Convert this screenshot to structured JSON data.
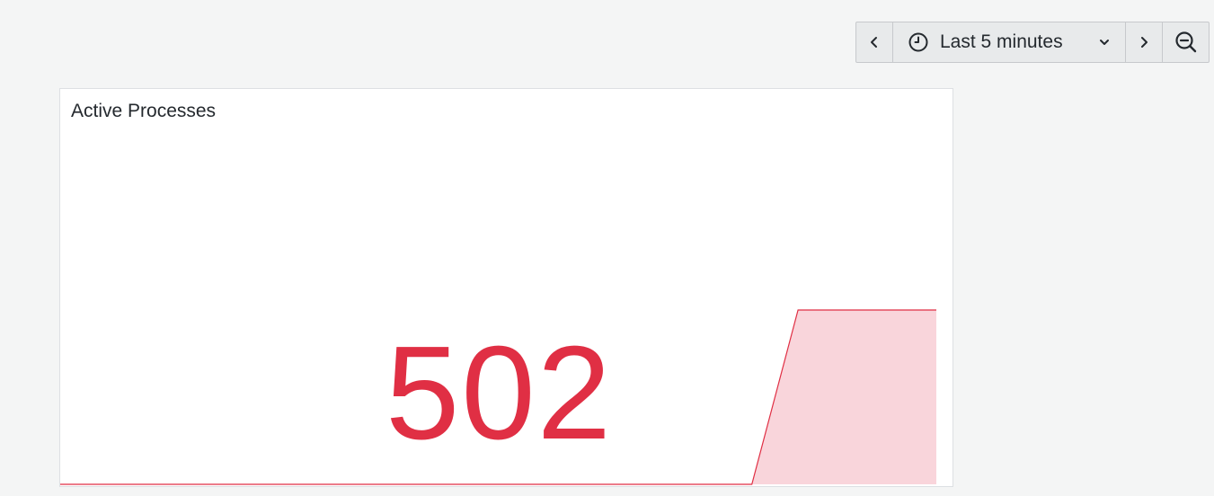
{
  "toolbar": {
    "time_range_label": "Last 5 minutes",
    "icons": {
      "prev": "chevron-left-icon",
      "clock": "clock-icon",
      "dropdown": "chevron-down-icon",
      "next": "chevron-right-icon",
      "zoom_out": "zoom-out-icon"
    }
  },
  "panel": {
    "title": "Active Processes",
    "value": "502",
    "value_color": "#e02f44",
    "fill_color": "#f9d5db",
    "sparkline_values": [
      0,
      0,
      0,
      0,
      0,
      0,
      0,
      0,
      0,
      0,
      0,
      0,
      0,
      0,
      0,
      0,
      502,
      502,
      502,
      502
    ]
  }
}
